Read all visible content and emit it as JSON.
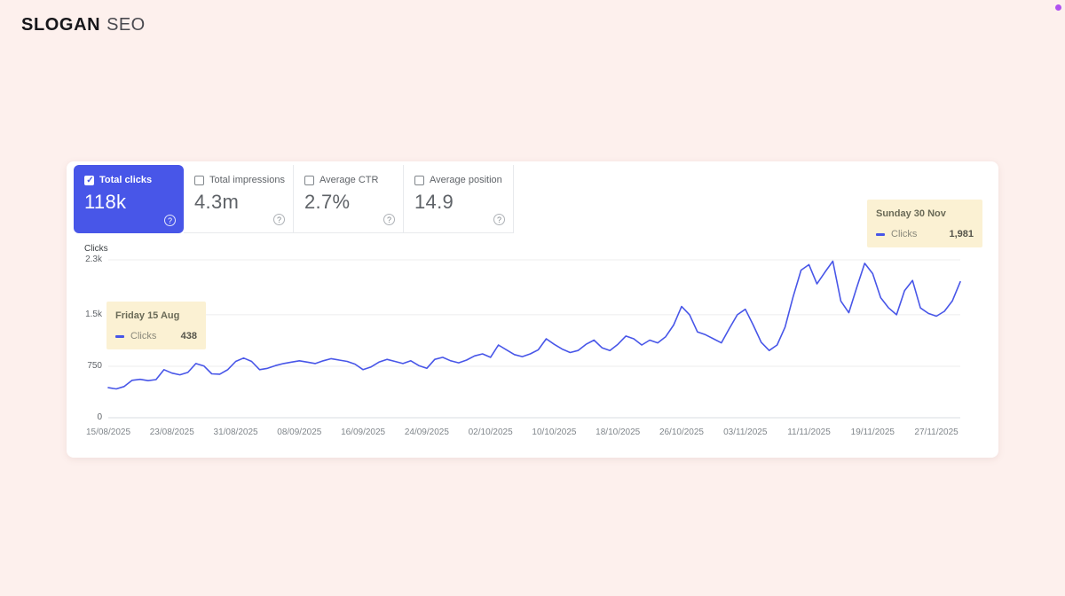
{
  "brand": {
    "name": "SLOGAN",
    "suffix": "SEO"
  },
  "colors": {
    "page_background": "#fdf0ed",
    "accent_blue": "#4856e8",
    "tooltip_background": "#fbf1d3",
    "corner_dot": "#b052f0"
  },
  "metrics": [
    {
      "label": "Total clicks",
      "value": "118k",
      "selected": true,
      "checked": true
    },
    {
      "label": "Total impressions",
      "value": "4.3m",
      "selected": false,
      "checked": false
    },
    {
      "label": "Average CTR",
      "value": "2.7%",
      "selected": false,
      "checked": false
    },
    {
      "label": "Average position",
      "value": "14.9",
      "selected": false,
      "checked": false
    }
  ],
  "help_icon_glyph": "?",
  "tooltips": {
    "left": {
      "title": "Friday 15 Aug",
      "series": "Clicks",
      "value": "438"
    },
    "right": {
      "title": "Sunday 30 Nov",
      "series": "Clicks",
      "value": "1,981"
    }
  },
  "chart_data": {
    "type": "line",
    "title": "Clicks",
    "ylabel": "Clicks",
    "ylim": [
      0,
      2300
    ],
    "grid": true,
    "y_ticks": [
      "2.3k",
      "1.5k",
      "750",
      "0"
    ],
    "y_tick_values": [
      2300,
      1500,
      750,
      0
    ],
    "x_tick_labels": [
      "15/08/2025",
      "23/08/2025",
      "31/08/2025",
      "08/09/2025",
      "16/09/2025",
      "24/09/2025",
      "02/10/2025",
      "10/10/2025",
      "18/10/2025",
      "26/10/2025",
      "03/11/2025",
      "11/11/2025",
      "19/11/2025",
      "27/11/2025"
    ],
    "x_tick_interval_days": 8,
    "series": [
      {
        "name": "Clicks",
        "color": "#4856e8",
        "values": [
          438,
          420,
          455,
          545,
          560,
          540,
          555,
          700,
          650,
          625,
          660,
          790,
          755,
          640,
          635,
          700,
          820,
          870,
          820,
          700,
          720,
          760,
          790,
          810,
          830,
          810,
          790,
          830,
          860,
          840,
          820,
          780,
          700,
          740,
          810,
          850,
          820,
          790,
          830,
          760,
          720,
          850,
          880,
          830,
          800,
          840,
          900,
          930,
          880,
          1060,
          990,
          920,
          890,
          930,
          990,
          1150,
          1070,
          1000,
          950,
          980,
          1070,
          1130,
          1020,
          980,
          1070,
          1190,
          1150,
          1060,
          1130,
          1090,
          1180,
          1350,
          1620,
          1500,
          1250,
          1210,
          1150,
          1090,
          1300,
          1500,
          1580,
          1350,
          1100,
          980,
          1060,
          1320,
          1760,
          2150,
          2230,
          1950,
          2120,
          2280,
          1700,
          1530,
          1900,
          2250,
          2100,
          1750,
          1600,
          1500,
          1850,
          2000,
          1600,
          1520,
          1480,
          1550,
          1700,
          1981
        ]
      }
    ]
  }
}
